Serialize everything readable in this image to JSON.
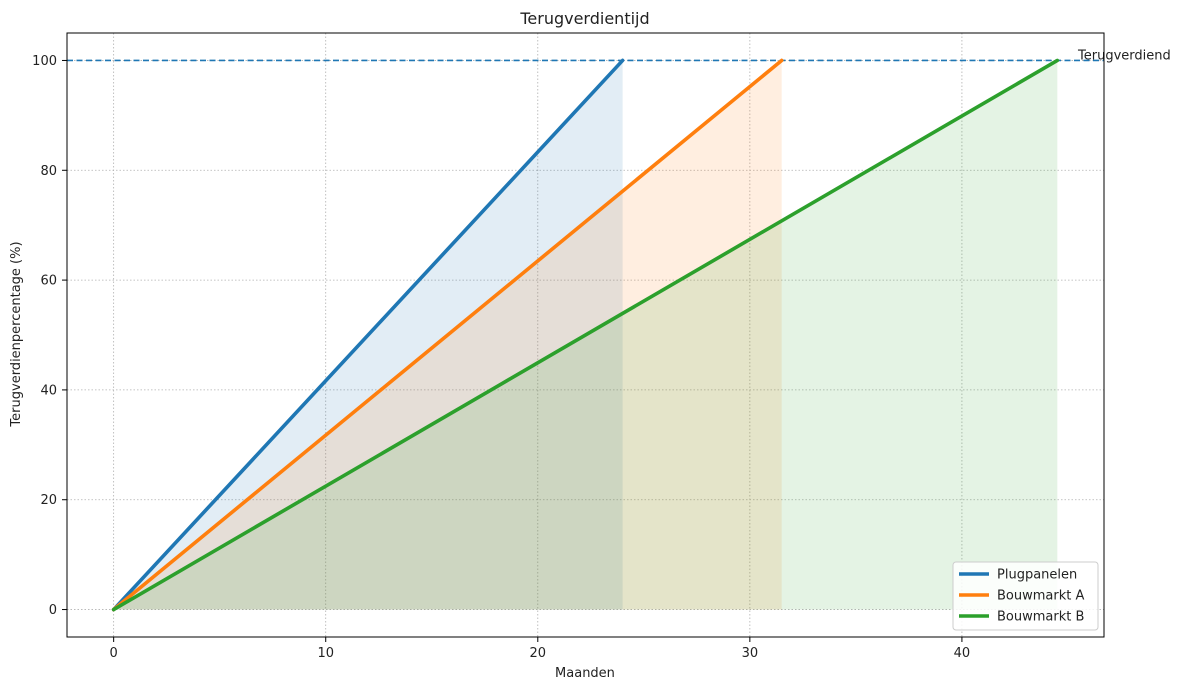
{
  "chart_data": {
    "type": "area",
    "title": "Terugverdientijd",
    "xlabel": "Maanden",
    "ylabel": "Terugverdienpercentage (%)",
    "xlim": [
      -2.2,
      46.7
    ],
    "ylim": [
      -5,
      105
    ],
    "xticks": [
      0,
      10,
      20,
      30,
      40
    ],
    "yticks": [
      0,
      20,
      40,
      60,
      80,
      100
    ],
    "grid": true,
    "legend_position": "bottom-right",
    "reference_line": {
      "y": 100,
      "label": "Terugverdiend",
      "color": "#1f77b4",
      "style": "dashed"
    },
    "series": [
      {
        "name": "Plugpanelen",
        "color": "#1f77b4",
        "x": [
          0,
          24
        ],
        "y": [
          0,
          100
        ]
      },
      {
        "name": "Bouwmarkt A",
        "color": "#ff7f0e",
        "x": [
          0,
          31.5
        ],
        "y": [
          0,
          100
        ]
      },
      {
        "name": "Bouwmarkt B",
        "color": "#2ca02c",
        "x": [
          0,
          44.5
        ],
        "y": [
          0,
          100
        ]
      }
    ]
  }
}
